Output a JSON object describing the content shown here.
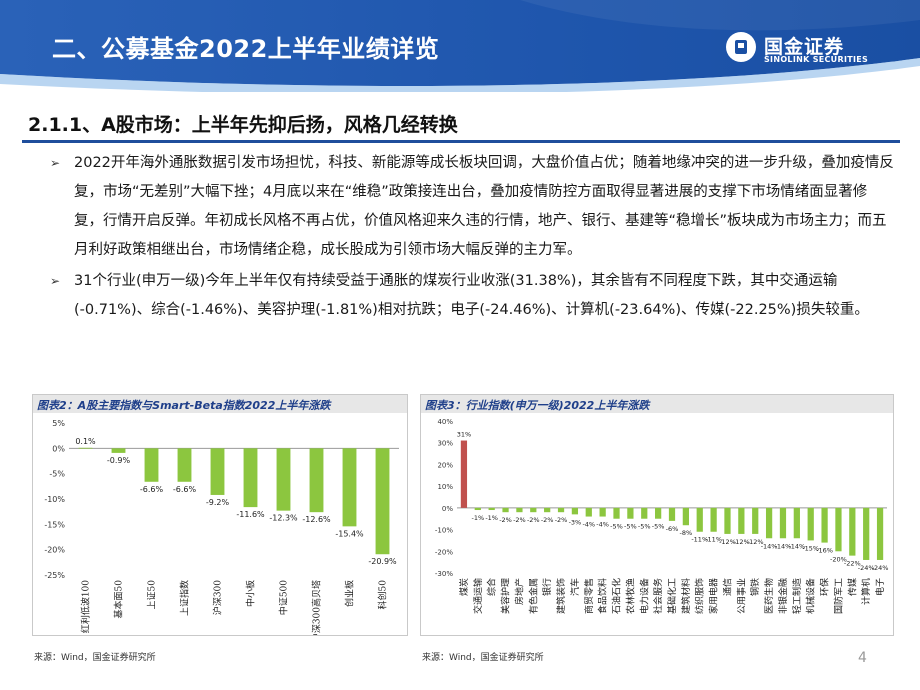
{
  "header": {
    "title": "二、公募基金2022上半年业绩详览",
    "logo_cn": "国金证券",
    "logo_en": "SINOLINK SECURITIES",
    "brand_color": "#1a4fa3"
  },
  "section": {
    "title": "2.1.1、A股市场：上半年先抑后扬，风格几经转换"
  },
  "bullets": [
    "2022开年海外通胀数据引发市场担忧，科技、新能源等成长板块回调，大盘价值占优；随着地缘冲突的进一步升级，叠加疫情反复，市场“无差别”大幅下挫；4月底以来在“维稳”政策接连出台，叠加疫情防控方面取得显著进展的支撑下市场情绪面显著修复，行情开启反弹。年初成长风格不再占优，价值风格迎来久违的行情，地产、银行、基建等“稳增长”板块成为市场主力；而五月利好政策相继出台，市场情绪企稳，成长股成为引领市场大幅反弹的主力军。",
    "31个行业(申万一级)今年上半年仅有持续受益于通胀的煤炭行业收涨(31.38%)，其余皆有不同程度下跌，其中交通运输(-0.71%)、综合(-1.46%)、美容护理(-1.81%)相对抗跌；电子(-24.46%)、计算机(-23.64%)、传媒(-22.25%)损失较重。"
  ],
  "chart_data": [
    {
      "type": "bar",
      "title": "图表2：A股主要指数与Smart-Beta指数2022上半年涨跌",
      "categories": [
        "红利低波100",
        "基本面50",
        "上证50",
        "上证指数",
        "沪深300",
        "中小板",
        "中证500",
        "沪深300高贝塔",
        "创业板",
        "科创50"
      ],
      "values": [
        0.1,
        -0.9,
        -6.6,
        -6.6,
        -9.2,
        -11.6,
        -12.3,
        -12.6,
        -15.4,
        -20.9
      ],
      "data_labels": [
        "0.1%",
        "-0.9%",
        "-6.6%",
        "-6.6%",
        "-9.2%",
        "-11.6%",
        "-12.3%",
        "-12.6%",
        "-15.4%",
        "-20.9%"
      ],
      "ylim": [
        -25,
        5
      ],
      "yticks": [
        "5%",
        "0%",
        "-5%",
        "-10%",
        "-15%",
        "-20%",
        "-25%"
      ],
      "bar_color": "#8cc63f",
      "grid": false
    },
    {
      "type": "bar",
      "title": "图表3：行业指数(申万一级)2022上半年涨跌",
      "categories": [
        "煤炭",
        "交通运输",
        "综合",
        "美容护理",
        "房地产",
        "有色金属",
        "银行",
        "建筑装饰",
        "汽车",
        "商贸零售",
        "食品饮料",
        "石油石化",
        "农林牧渔",
        "电力设备",
        "社会服务",
        "基础化工",
        "建筑材料",
        "纺织服饰",
        "家用电器",
        "通信",
        "公用事业",
        "钢铁",
        "医药生物",
        "非银金融",
        "轻工制造",
        "机械设备",
        "环保",
        "国防军工",
        "传媒",
        "计算机",
        "电子"
      ],
      "values": [
        31,
        -1,
        -1,
        -2,
        -2,
        -2,
        -2,
        -2,
        -3,
        -4,
        -4,
        -5,
        -5,
        -5,
        -5,
        -6,
        -8,
        -11,
        -11,
        -12,
        -12,
        -12,
        -14,
        -14,
        -14,
        -15,
        -16,
        -20,
        -22,
        -24,
        -24
      ],
      "data_labels": [
        "31%",
        "-1%",
        "-1%",
        "-2%",
        "-2%",
        "-2%",
        "-2%",
        "-2%",
        "-3%",
        "-4%",
        "-4%",
        "-5%",
        "-5%",
        "-5%",
        "-5%",
        "-6%",
        "-8%",
        "-11%",
        "-11%",
        "-12%",
        "-12%",
        "-12%",
        "-14%",
        "-14%",
        "-14%",
        "-15%",
        "-16%",
        "-20%",
        "-22%",
        "-24%",
        "-24%"
      ],
      "ylim": [
        -30,
        40
      ],
      "yticks": [
        "40%",
        "30%",
        "20%",
        "10%",
        "0%",
        "-10%",
        "-20%",
        "-30%"
      ],
      "positive_color": "#c0504d",
      "bar_color": "#8cc63f",
      "grid": false
    }
  ],
  "sources": [
    "来源：Wind，国金证券研究所",
    "来源：Wind，国金证券研究所"
  ],
  "page_number": "4"
}
